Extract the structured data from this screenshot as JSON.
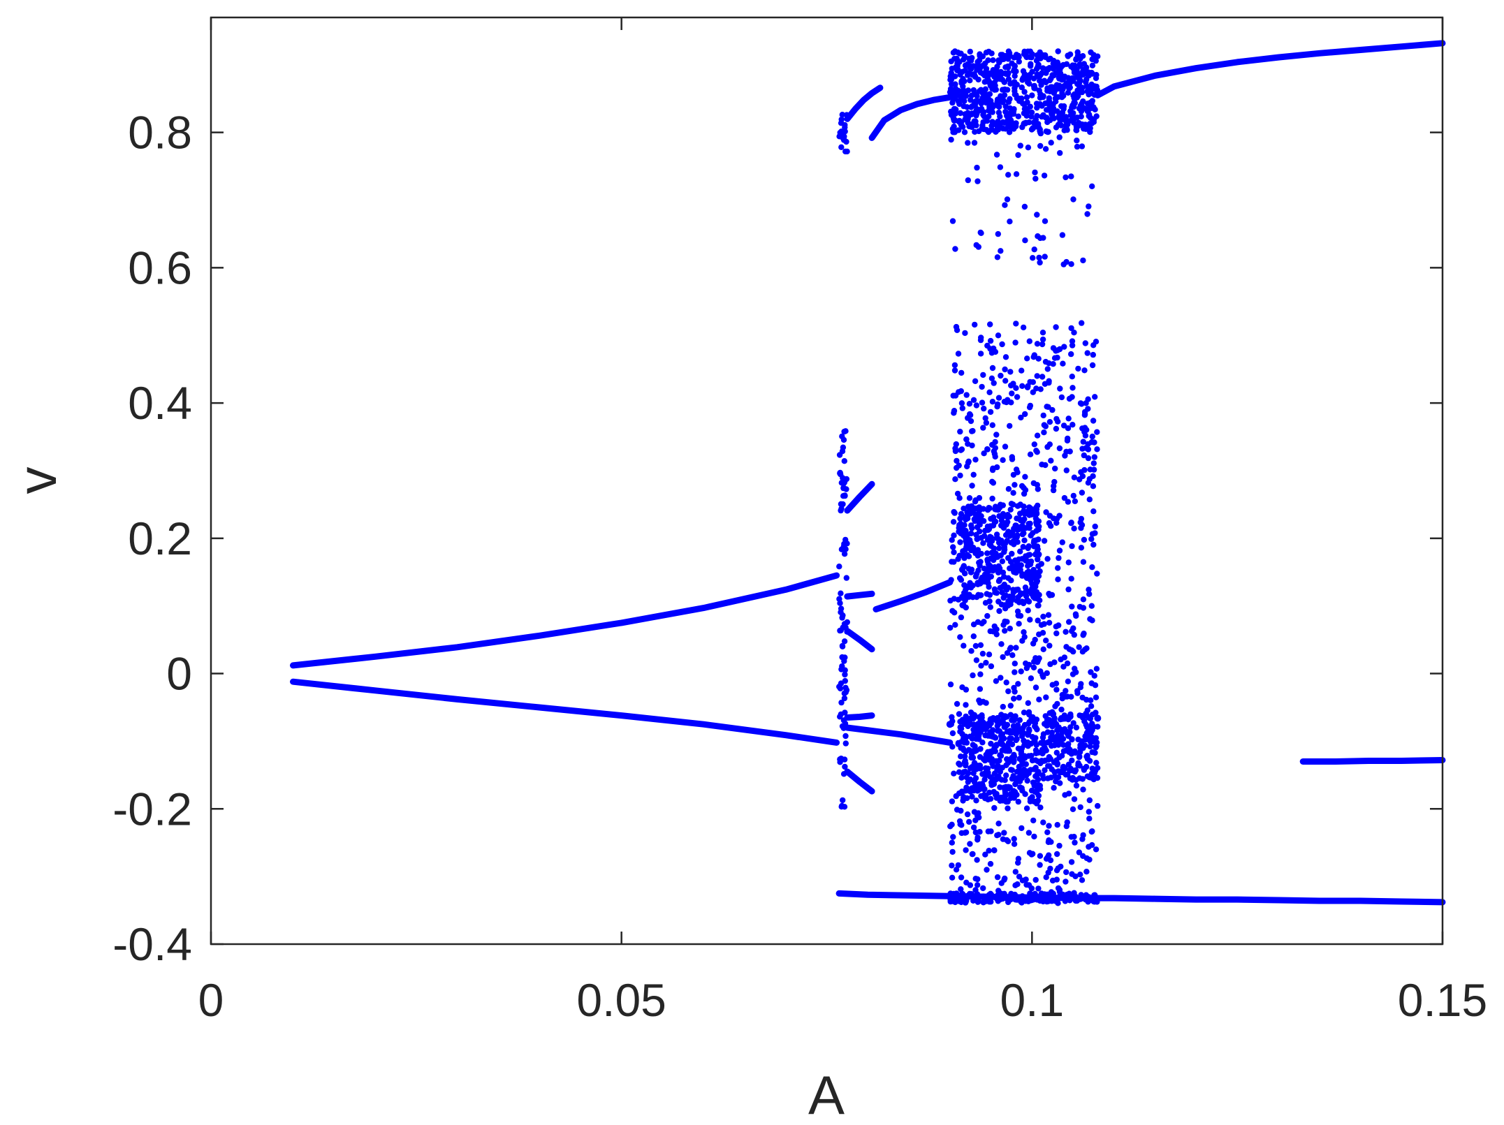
{
  "chart_data": {
    "type": "scatter",
    "title": "",
    "xlabel": "A",
    "ylabel": "v",
    "xlim": [
      0,
      0.15
    ],
    "ylim": [
      -0.4,
      0.97
    ],
    "xticks": [
      0,
      0.05,
      0.1,
      0.15
    ],
    "xtick_labels": [
      "0",
      "0.05",
      "0.1",
      "0.15"
    ],
    "yticks": [
      -0.4,
      -0.2,
      0,
      0.2,
      0.4,
      0.6,
      0.8
    ],
    "ytick_labels": [
      "-0.4",
      "-0.2",
      "0",
      "0.2",
      "0.4",
      "0.6",
      "0.8"
    ],
    "grid": false,
    "legend": "none",
    "marker_color": "#0000ff",
    "branches": [
      {
        "x": [
          0.01,
          0.02,
          0.03,
          0.04,
          0.05,
          0.06,
          0.07,
          0.0762
        ],
        "y": [
          0.012,
          0.025,
          0.039,
          0.056,
          0.075,
          0.097,
          0.124,
          0.145
        ]
      },
      {
        "x": [
          0.01,
          0.02,
          0.03,
          0.04,
          0.05,
          0.06,
          0.07,
          0.0762
        ],
        "y": [
          -0.012,
          -0.025,
          -0.038,
          -0.05,
          -0.062,
          -0.075,
          -0.091,
          -0.102
        ]
      },
      {
        "x": [
          0.0805,
          0.082,
          0.084,
          0.086,
          0.088,
          0.09
        ],
        "y": [
          0.792,
          0.818,
          0.833,
          0.842,
          0.848,
          0.852
        ]
      },
      {
        "x": [
          0.108,
          0.11,
          0.115,
          0.12,
          0.125,
          0.13,
          0.135,
          0.14,
          0.145,
          0.15
        ],
        "y": [
          0.855,
          0.868,
          0.884,
          0.895,
          0.904,
          0.911,
          0.917,
          0.922,
          0.927,
          0.932
        ]
      },
      {
        "x": [
          0.0765,
          0.08,
          0.085,
          0.09,
          0.095,
          0.1,
          0.105,
          0.11,
          0.115,
          0.12,
          0.125,
          0.13,
          0.135,
          0.14,
          0.145,
          0.15
        ],
        "y": [
          -0.325,
          -0.327,
          -0.328,
          -0.329,
          -0.33,
          -0.331,
          -0.332,
          -0.332,
          -0.333,
          -0.334,
          -0.334,
          -0.335,
          -0.336,
          -0.336,
          -0.337,
          -0.338
        ]
      },
      {
        "x": [
          0.133,
          0.137,
          0.141,
          0.145,
          0.15
        ],
        "y": [
          -0.13,
          -0.13,
          -0.129,
          -0.129,
          -0.128
        ]
      },
      {
        "x": [
          0.081,
          0.084,
          0.087,
          0.09
        ],
        "y": [
          0.095,
          0.107,
          0.12,
          0.135
        ]
      },
      {
        "x": [
          0.0775,
          0.079,
          0.0805
        ],
        "y": [
          0.114,
          0.116,
          0.118
        ]
      },
      {
        "x": [
          0.0775,
          0.079,
          0.0805
        ],
        "y": [
          0.063,
          0.05,
          0.036
        ]
      },
      {
        "x": [
          0.0775,
          0.079,
          0.0805
        ],
        "y": [
          0.241,
          0.261,
          0.28
        ]
      },
      {
        "x": [
          0.0775,
          0.079,
          0.0805
        ],
        "y": [
          -0.065,
          -0.064,
          -0.062
        ]
      },
      {
        "x": [
          0.0775,
          0.079,
          0.0805
        ],
        "y": [
          -0.145,
          -0.16,
          -0.174
        ]
      },
      {
        "x": [
          0.0775,
          0.084,
          0.09
        ],
        "y": [
          -0.08,
          -0.09,
          -0.102
        ]
      },
      {
        "x": [
          0.0775,
          0.0785,
          0.0795,
          0.0805,
          0.0815
        ],
        "y": [
          0.82,
          0.835,
          0.848,
          0.858,
          0.866
        ]
      }
    ],
    "scatter_regions": [
      {
        "xrange": [
          0.0765,
          0.0775
        ],
        "yrange": [
          -0.2,
          0.36
        ],
        "count": 90
      },
      {
        "xrange": [
          0.0765,
          0.0775
        ],
        "yrange": [
          0.77,
          0.83
        ],
        "count": 20
      },
      {
        "xrange": [
          0.09,
          0.108
        ],
        "yrange": [
          -0.34,
          0.52
        ],
        "count": 900
      },
      {
        "xrange": [
          0.091,
          0.101
        ],
        "yrange": [
          0.1,
          0.25
        ],
        "count": 350
      },
      {
        "xrange": [
          0.091,
          0.101
        ],
        "yrange": [
          -0.19,
          -0.06
        ],
        "count": 350
      },
      {
        "xrange": [
          0.101,
          0.108
        ],
        "yrange": [
          -0.16,
          -0.06
        ],
        "count": 160
      },
      {
        "xrange": [
          0.09,
          0.108
        ],
        "yrange": [
          0.8,
          0.92
        ],
        "count": 700
      },
      {
        "xrange": [
          0.09,
          0.108
        ],
        "yrange": [
          0.6,
          0.8
        ],
        "count": 60
      },
      {
        "xrange": [
          0.09,
          0.108
        ],
        "yrange": [
          -0.338,
          -0.325
        ],
        "count": 160
      }
    ],
    "outer_band_markers": [
      {
        "x": 0.09,
        "y": -0.075
      },
      {
        "x": 0.095,
        "y": -0.068
      },
      {
        "x": 0.1,
        "y": -0.066
      },
      {
        "x": 0.104,
        "y": -0.066
      },
      {
        "x": 0.108,
        "y": -0.066
      }
    ]
  }
}
